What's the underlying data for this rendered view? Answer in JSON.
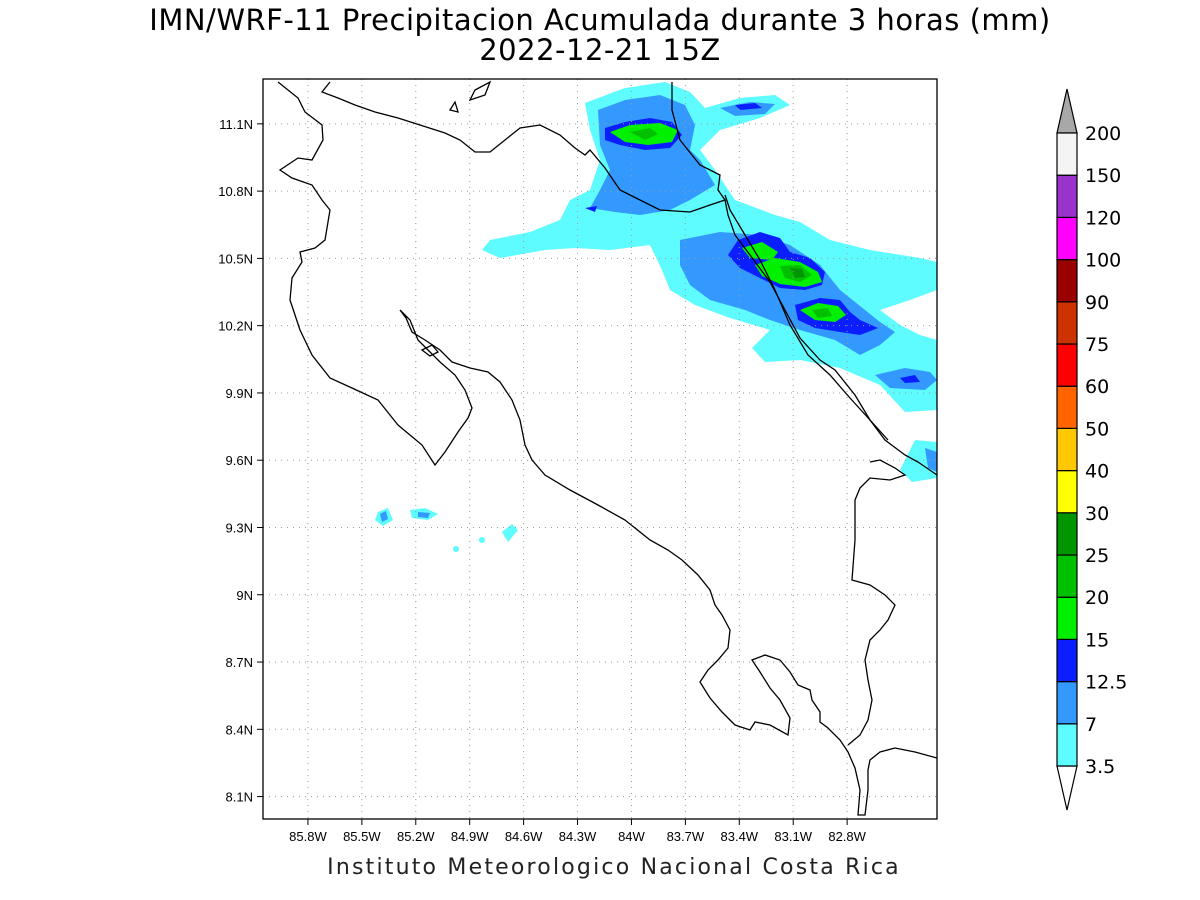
{
  "title": {
    "line1": "IMN/WRF-11 Precipitacion Acumulada durante 3 horas (mm)",
    "line2": "2022-12-21 15Z"
  },
  "footer": "Instituto Meteorologico Nacional Costa Rica",
  "map": {
    "lon_range": [
      -86.05,
      -82.3
    ],
    "lat_range": [
      8.0,
      11.3
    ],
    "lon_ticks": [
      {
        "value": -85.8,
        "label": "85.8W"
      },
      {
        "value": -85.5,
        "label": "85.5W"
      },
      {
        "value": -85.2,
        "label": "85.2W"
      },
      {
        "value": -84.9,
        "label": "84.9W"
      },
      {
        "value": -84.6,
        "label": "84.6W"
      },
      {
        "value": -84.3,
        "label": "84.3W"
      },
      {
        "value": -84.0,
        "label": "84W"
      },
      {
        "value": -83.7,
        "label": "83.7W"
      },
      {
        "value": -83.4,
        "label": "83.4W"
      },
      {
        "value": -83.1,
        "label": "83.1W"
      },
      {
        "value": -82.8,
        "label": "82.8W"
      }
    ],
    "lat_ticks": [
      {
        "value": 11.1,
        "label": "11.1N"
      },
      {
        "value": 10.8,
        "label": "10.8N"
      },
      {
        "value": 10.5,
        "label": "10.5N"
      },
      {
        "value": 10.2,
        "label": "10.2N"
      },
      {
        "value": 9.9,
        "label": "9.9N"
      },
      {
        "value": 9.6,
        "label": "9.6N"
      },
      {
        "value": 9.3,
        "label": "9.3N"
      },
      {
        "value": 9.0,
        "label": "9N"
      },
      {
        "value": 8.7,
        "label": "8.7N"
      },
      {
        "value": 8.4,
        "label": "8.4N"
      },
      {
        "value": 8.1,
        "label": "8.1N"
      }
    ],
    "grid": true
  },
  "colorbar": {
    "labels": [
      "3.5",
      "7",
      "12.5",
      "15",
      "20",
      "25",
      "30",
      "40",
      "50",
      "60",
      "75",
      "90",
      "100",
      "120",
      "150",
      "200"
    ],
    "colors": [
      "#5efcff",
      "#3399ff",
      "#0a1eff",
      "#00f000",
      "#00c000",
      "#009600",
      "#ffff00",
      "#ffc800",
      "#ff6400",
      "#ff0000",
      "#cc3300",
      "#990000",
      "#ff00ff",
      "#9933cc",
      "#f4f4f4"
    ],
    "over_color": "#a8a8a8",
    "under_color": "#ffffff"
  }
}
